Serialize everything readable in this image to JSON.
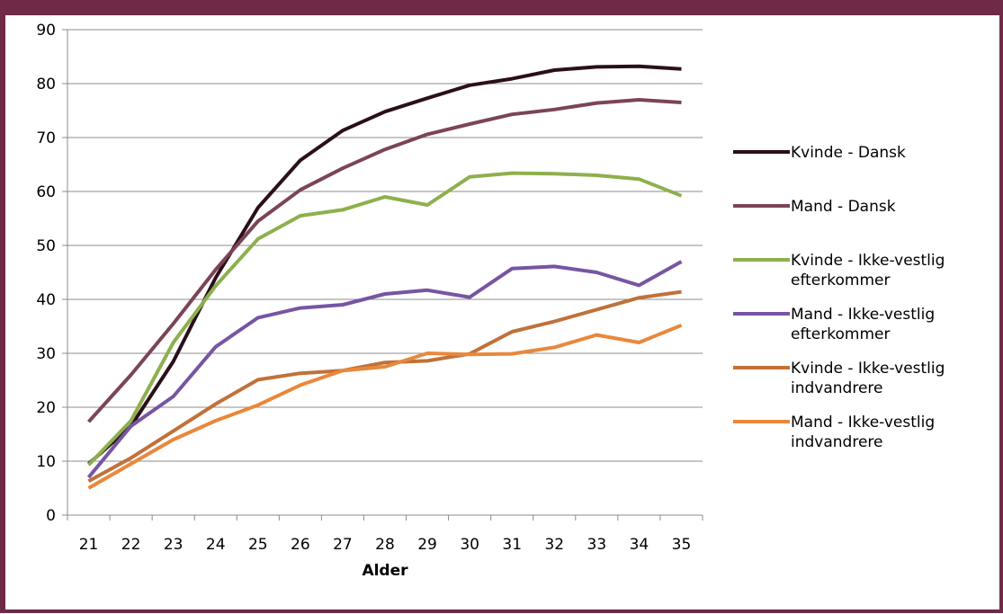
{
  "chart_data": {
    "type": "line",
    "title": "",
    "xlabel": "Alder",
    "ylabel": "",
    "ylim": [
      0,
      90
    ],
    "yticks": [
      "0",
      "10",
      "20",
      "30",
      "40",
      "50",
      "60",
      "70",
      "80",
      "90"
    ],
    "categories": [
      "21",
      "22",
      "23",
      "24",
      "25",
      "26",
      "27",
      "28",
      "29",
      "30",
      "31",
      "32",
      "33",
      "34",
      "35"
    ],
    "grid": "horizontal",
    "legend_position": "right",
    "series": [
      {
        "name": "Kvinde - Dansk",
        "name_lines": [
          "Kvinde - Dansk"
        ],
        "color": "#2B0F1A",
        "values": [
          9.5,
          16.5,
          28.5,
          44,
          57,
          65.8,
          71.3,
          74.8,
          77.3,
          79.7,
          80.9,
          82.5,
          83.1,
          83.2,
          82.7
        ]
      },
      {
        "name": "Mand - Dansk",
        "name_lines": [
          "Mand - Dansk"
        ],
        "color": "#7B4457",
        "values": [
          17.3,
          26,
          35.5,
          45.5,
          54.5,
          60.3,
          64.3,
          67.8,
          70.6,
          72.5,
          74.3,
          75.2,
          76.4,
          77,
          76.5
        ]
      },
      {
        "name": "Kvinde - Ikke-vestlig efterkommer",
        "name_lines": [
          "Kvinde - Ikke-vestlig",
          "efterkommer"
        ],
        "color": "#8DB04E",
        "values": [
          9.3,
          17.5,
          32,
          42.5,
          51.2,
          55.5,
          56.6,
          59,
          57.5,
          62.7,
          63.4,
          63.3,
          63,
          62.3,
          59.2
        ]
      },
      {
        "name": "Mand - Ikke-vestlig efterkommer",
        "name_lines": [
          "Mand - Ikke-vestlig",
          "efterkommer"
        ],
        "color": "#7755A2",
        "values": [
          7,
          16.5,
          22,
          31.2,
          36.6,
          38.4,
          39,
          41,
          41.7,
          40.4,
          45.7,
          46.1,
          45,
          42.6,
          47
        ]
      },
      {
        "name": "Kvinde - Ikke-vestlig indvandrere",
        "name_lines": [
          "Kvinde - Ikke-vestlig",
          "indvandrere"
        ],
        "color": "#C0713A",
        "values": [
          6.3,
          10.6,
          15.6,
          20.6,
          25.1,
          26.3,
          26.8,
          28.3,
          28.6,
          29.9,
          34,
          35.9,
          38.1,
          40.3,
          41.4
        ]
      },
      {
        "name": "Mand - Ikke-vestlig indvandrere",
        "name_lines": [
          "Mand - Ikke-vestlig",
          "indvandrere"
        ],
        "color": "#E8883C",
        "values": [
          5,
          9.5,
          14,
          17.5,
          20.4,
          24.1,
          26.8,
          27.5,
          30,
          29.8,
          29.9,
          31.1,
          33.4,
          32,
          35.2
        ]
      }
    ]
  }
}
